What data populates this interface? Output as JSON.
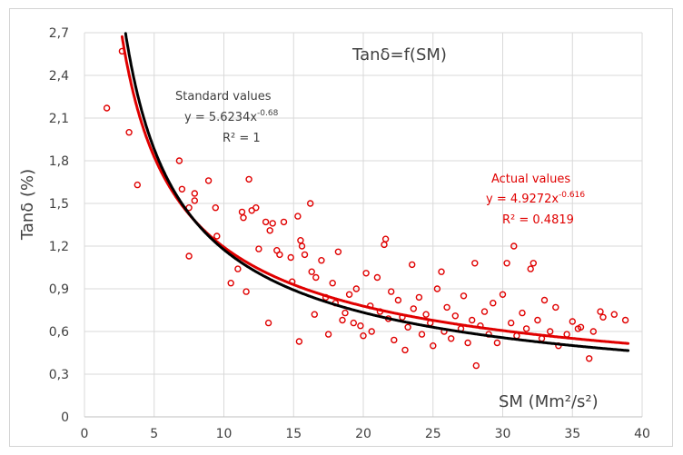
{
  "chart_data": {
    "type": "scatter",
    "title": "Tanδ=f(SM)",
    "xlabel": "SM (Mm²/s²)",
    "ylabel": "Tanδ (%)",
    "xlim": [
      0,
      40
    ],
    "ylim": [
      0,
      2.7
    ],
    "x_ticks": [
      "0",
      "5",
      "10",
      "15",
      "20",
      "25",
      "30",
      "35",
      "40"
    ],
    "y_ticks": [
      "0",
      "0,3",
      "0,6",
      "0,9",
      "1,2",
      "1,5",
      "1,8",
      "2,1",
      "2,4",
      "2,7"
    ],
    "grid": true,
    "series": [
      {
        "name": "Standard values",
        "kind": "trendline",
        "color": "#000000",
        "equation": {
          "a": 5.6234,
          "b": -0.68
        },
        "equation_text": "y = 5.6234x",
        "exponent_text": "-0.68",
        "r2_text": "R² = 1",
        "x_range": [
          2.6,
          39
        ]
      },
      {
        "name": "Actual values",
        "kind": "scatter+trendline",
        "color": "#e00000",
        "equation": {
          "a": 4.9272,
          "b": -0.616
        },
        "equation_text": "y = 4.9272x",
        "exponent_text": "-0.616",
        "r2_text": "R² = 0.4819",
        "x_range": [
          2.5,
          39
        ],
        "points": [
          [
            1.6,
            2.17
          ],
          [
            2.7,
            2.57
          ],
          [
            3.2,
            2.0
          ],
          [
            3.8,
            1.63
          ],
          [
            6.8,
            1.8
          ],
          [
            7.0,
            1.6
          ],
          [
            7.5,
            1.13
          ],
          [
            7.5,
            1.47
          ],
          [
            7.9,
            1.52
          ],
          [
            7.9,
            1.57
          ],
          [
            8.9,
            1.66
          ],
          [
            9.4,
            1.47
          ],
          [
            9.5,
            1.27
          ],
          [
            10.5,
            0.94
          ],
          [
            11.0,
            1.04
          ],
          [
            11.3,
            1.44
          ],
          [
            11.4,
            1.4
          ],
          [
            11.6,
            0.88
          ],
          [
            11.8,
            1.67
          ],
          [
            12.0,
            1.45
          ],
          [
            12.3,
            1.47
          ],
          [
            12.5,
            1.18
          ],
          [
            13.0,
            1.37
          ],
          [
            13.2,
            0.66
          ],
          [
            13.3,
            1.31
          ],
          [
            13.5,
            1.36
          ],
          [
            13.8,
            1.17
          ],
          [
            14.0,
            1.14
          ],
          [
            14.3,
            1.37
          ],
          [
            14.8,
            1.12
          ],
          [
            14.9,
            0.95
          ],
          [
            15.3,
            1.41
          ],
          [
            15.4,
            0.53
          ],
          [
            15.5,
            1.24
          ],
          [
            15.6,
            1.2
          ],
          [
            15.8,
            1.14
          ],
          [
            16.2,
            1.5
          ],
          [
            16.3,
            1.02
          ],
          [
            16.5,
            0.72
          ],
          [
            16.6,
            0.98
          ],
          [
            17.0,
            1.1
          ],
          [
            17.3,
            0.84
          ],
          [
            17.5,
            0.58
          ],
          [
            17.8,
            0.94
          ],
          [
            18.0,
            0.8
          ],
          [
            18.2,
            1.16
          ],
          [
            18.5,
            0.68
          ],
          [
            18.7,
            0.73
          ],
          [
            19.0,
            0.86
          ],
          [
            19.3,
            0.66
          ],
          [
            19.5,
            0.9
          ],
          [
            19.8,
            0.64
          ],
          [
            20.0,
            0.57
          ],
          [
            20.2,
            1.01
          ],
          [
            20.5,
            0.78
          ],
          [
            20.6,
            0.6
          ],
          [
            21.0,
            0.98
          ],
          [
            21.2,
            0.74
          ],
          [
            21.5,
            1.21
          ],
          [
            21.6,
            1.25
          ],
          [
            21.8,
            0.69
          ],
          [
            22.0,
            0.88
          ],
          [
            22.2,
            0.54
          ],
          [
            22.5,
            0.82
          ],
          [
            22.8,
            0.7
          ],
          [
            23.0,
            0.47
          ],
          [
            23.2,
            0.63
          ],
          [
            23.5,
            1.07
          ],
          [
            23.6,
            0.76
          ],
          [
            24.0,
            0.84
          ],
          [
            24.2,
            0.58
          ],
          [
            24.5,
            0.72
          ],
          [
            24.8,
            0.66
          ],
          [
            25.0,
            0.5
          ],
          [
            25.3,
            0.9
          ],
          [
            25.6,
            1.02
          ],
          [
            25.8,
            0.6
          ],
          [
            26.0,
            0.77
          ],
          [
            26.3,
            0.55
          ],
          [
            26.6,
            0.71
          ],
          [
            27.0,
            0.62
          ],
          [
            27.2,
            0.85
          ],
          [
            27.5,
            0.52
          ],
          [
            27.8,
            0.68
          ],
          [
            28.0,
            1.08
          ],
          [
            28.1,
            0.36
          ],
          [
            28.4,
            0.64
          ],
          [
            28.7,
            0.74
          ],
          [
            29.0,
            0.58
          ],
          [
            29.3,
            0.8
          ],
          [
            29.6,
            0.52
          ],
          [
            30.0,
            0.86
          ],
          [
            30.3,
            1.08
          ],
          [
            30.6,
            0.66
          ],
          [
            30.8,
            1.2
          ],
          [
            31.0,
            0.57
          ],
          [
            31.4,
            0.73
          ],
          [
            31.7,
            0.62
          ],
          [
            32.0,
            1.04
          ],
          [
            32.2,
            1.08
          ],
          [
            32.5,
            0.68
          ],
          [
            32.8,
            0.55
          ],
          [
            33.0,
            0.82
          ],
          [
            33.4,
            0.6
          ],
          [
            33.8,
            0.77
          ],
          [
            34.0,
            0.5
          ],
          [
            34.6,
            0.58
          ],
          [
            35.0,
            0.67
          ],
          [
            35.4,
            0.62
          ],
          [
            35.6,
            0.63
          ],
          [
            36.2,
            0.41
          ],
          [
            36.5,
            0.6
          ],
          [
            37.0,
            0.74
          ],
          [
            37.2,
            0.7
          ],
          [
            38.0,
            0.72
          ],
          [
            38.8,
            0.68
          ]
        ]
      }
    ]
  }
}
